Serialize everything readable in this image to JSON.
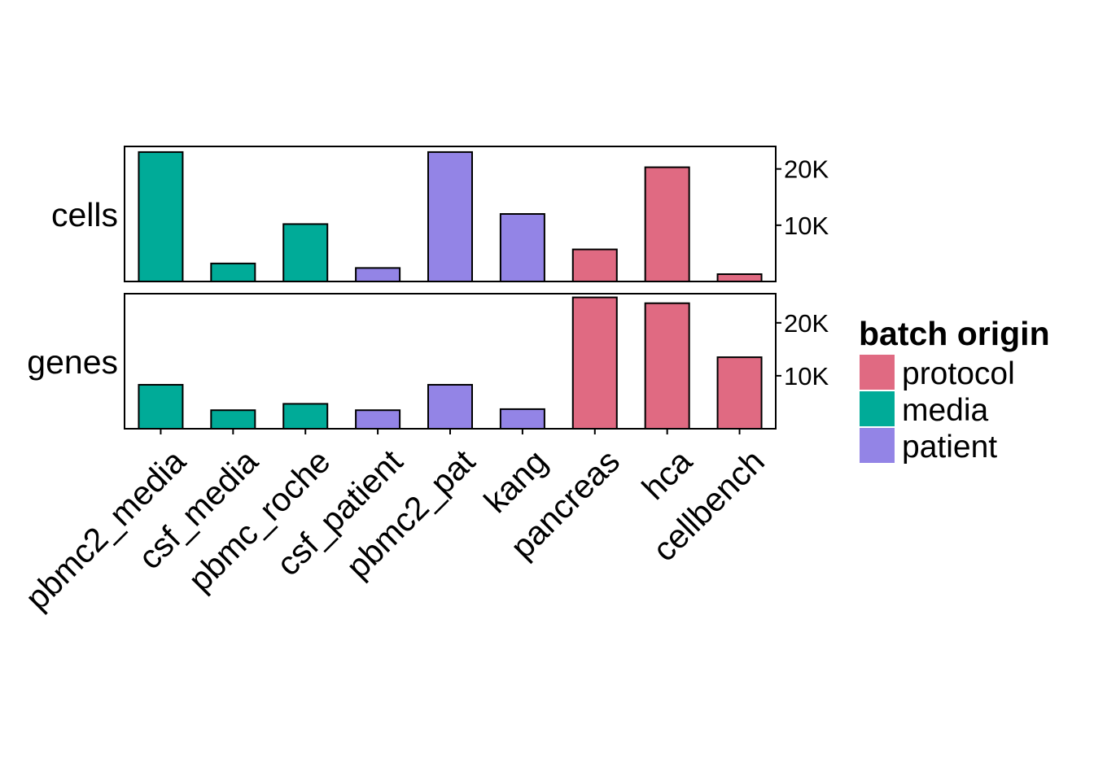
{
  "chart_data": {
    "type": "bar",
    "categories": [
      "pbmc2_media",
      "csf_media",
      "pbmc_roche",
      "csf_patient",
      "pbmc2_pat",
      "kang",
      "pancreas",
      "hca",
      "cellbench"
    ],
    "category_group": [
      "media",
      "media",
      "media",
      "patient",
      "patient",
      "patient",
      "protocol",
      "protocol",
      "protocol"
    ],
    "panels": [
      {
        "label": "cells",
        "values": [
          23000,
          3200,
          10200,
          2400,
          23000,
          12000,
          5700,
          20300,
          1300
        ],
        "ylim": [
          0,
          24000
        ],
        "ticks": [
          10000,
          20000
        ],
        "tick_labels": [
          "10K",
          "20K"
        ]
      },
      {
        "label": "genes",
        "values": [
          8300,
          3500,
          4700,
          3500,
          8300,
          3700,
          24800,
          23700,
          13500
        ],
        "ylim": [
          0,
          25500
        ],
        "ticks": [
          10000,
          20000
        ],
        "tick_labels": [
          "10K",
          "20K"
        ]
      }
    ],
    "legend": {
      "title": "batch origin",
      "position": "right",
      "entries": [
        {
          "name": "protocol",
          "color": "#E06A82"
        },
        {
          "name": "media",
          "color": "#00AB98"
        },
        {
          "name": "patient",
          "color": "#9384E6"
        }
      ]
    },
    "y_axis_position": "right",
    "grid": false
  }
}
